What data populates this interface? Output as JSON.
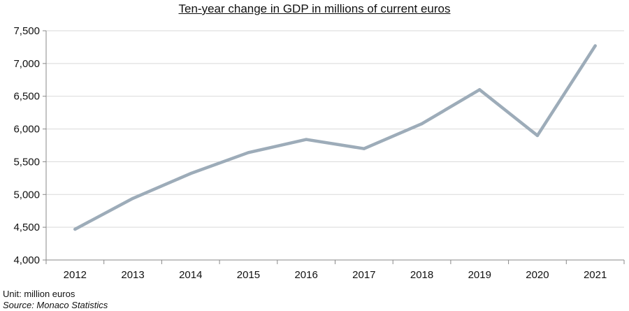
{
  "chart_data": {
    "type": "line",
    "title": "Ten-year change in GDP in millions of current euros",
    "categories": [
      "2012",
      "2013",
      "2014",
      "2015",
      "2016",
      "2017",
      "2018",
      "2019",
      "2020",
      "2021"
    ],
    "series": [
      {
        "values": [
          4470,
          4940,
          5320,
          5640,
          5840,
          5700,
          6080,
          6600,
          5900,
          7270
        ]
      }
    ],
    "ylim": [
      4000,
      7500
    ],
    "yticks": [
      4000,
      4500,
      5000,
      5500,
      6000,
      6500,
      7000,
      7500
    ],
    "ytick_labels": [
      "4,000",
      "4,500",
      "5,000",
      "5,500",
      "6,000",
      "6,500",
      "7,000",
      "7,500"
    ],
    "grid": true,
    "line_color": "#9dacb9",
    "grid_color": "#d9d9d9",
    "unit_note": "Unit: million euros",
    "source_note": "Source: Monaco Statistics"
  }
}
